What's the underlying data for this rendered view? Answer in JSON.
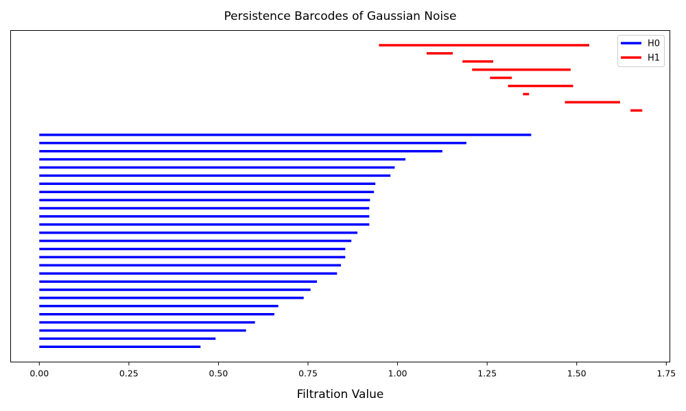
{
  "chart_data": {
    "type": "bar",
    "subtype": "persistence-barcode",
    "title": "Persistence Barcodes of Gaussian Noise",
    "xlabel": "Filtration Value",
    "ylabel": "",
    "xlim": [
      -0.08,
      1.76
    ],
    "x_ticks": [
      0.0,
      0.25,
      0.5,
      0.75,
      1.0,
      1.25,
      1.5,
      1.75
    ],
    "x_tick_labels": [
      "0.00",
      "0.25",
      "0.50",
      "0.75",
      "1.00",
      "1.25",
      "1.50",
      "1.75"
    ],
    "grid": false,
    "legend_position": "top-right",
    "series": [
      {
        "name": "H0",
        "color": "#0000ff",
        "intervals": [
          [
            0.0,
            1.373
          ],
          [
            0.0,
            1.192
          ],
          [
            0.0,
            1.125
          ],
          [
            0.0,
            1.022
          ],
          [
            0.0,
            0.992
          ],
          [
            0.0,
            0.98
          ],
          [
            0.0,
            0.938
          ],
          [
            0.0,
            0.934
          ],
          [
            0.0,
            0.923
          ],
          [
            0.0,
            0.921
          ],
          [
            0.0,
            0.921
          ],
          [
            0.0,
            0.921
          ],
          [
            0.0,
            0.888
          ],
          [
            0.0,
            0.871
          ],
          [
            0.0,
            0.854
          ],
          [
            0.0,
            0.854
          ],
          [
            0.0,
            0.842
          ],
          [
            0.0,
            0.831
          ],
          [
            0.0,
            0.775
          ],
          [
            0.0,
            0.757
          ],
          [
            0.0,
            0.738
          ],
          [
            0.0,
            0.667
          ],
          [
            0.0,
            0.656
          ],
          [
            0.0,
            0.602
          ],
          [
            0.0,
            0.577
          ],
          [
            0.0,
            0.492
          ],
          [
            0.0,
            0.45
          ]
        ]
      },
      {
        "name": "H1",
        "color": "#ff0000",
        "intervals": [
          [
            0.948,
            1.535
          ],
          [
            1.081,
            1.154
          ],
          [
            1.181,
            1.267
          ],
          [
            1.208,
            1.483
          ],
          [
            1.258,
            1.319
          ],
          [
            1.308,
            1.49
          ],
          [
            1.35,
            1.367
          ],
          [
            1.467,
            1.621
          ],
          [
            1.65,
            1.683
          ]
        ]
      }
    ]
  }
}
